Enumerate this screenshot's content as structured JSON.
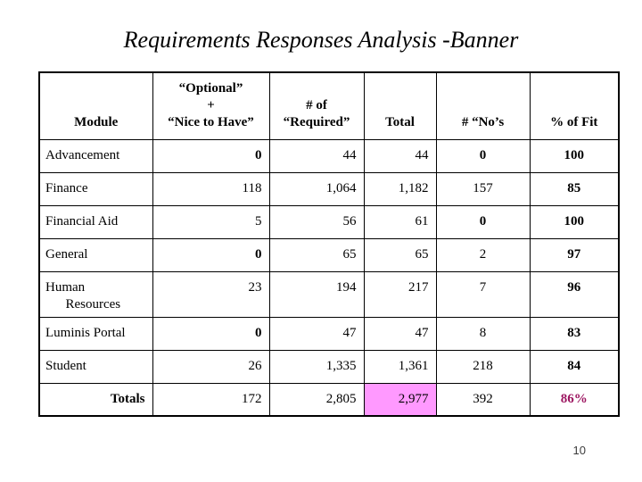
{
  "title": "Requirements Responses Analysis -Banner",
  "page_number": "10",
  "colors": {
    "highlight_cell_background": "#FF99FF",
    "accent_text": "#9C1560",
    "grid_lines": "#000000",
    "background": "#FFFFFF"
  },
  "table": {
    "headers": [
      "Module",
      "“Optional”\n+\n“Nice to Have”",
      "# of\n“Required”",
      "Total",
      "#  “No’s",
      "% of Fit"
    ],
    "rows": [
      {
        "name": "Advancement",
        "cells": [
          {
            "text": "0",
            "bold": true
          },
          {
            "text": "44"
          },
          {
            "text": "44"
          },
          {
            "text": "0",
            "bold": true
          },
          {
            "text": "100",
            "bold": true
          }
        ]
      },
      {
        "name": "Finance",
        "cells": [
          {
            "text": "118"
          },
          {
            "text": "1,064"
          },
          {
            "text": "1,182"
          },
          {
            "text": "157"
          },
          {
            "text": "85",
            "bold": true
          }
        ]
      },
      {
        "name": "Financial Aid",
        "cells": [
          {
            "text": "5"
          },
          {
            "text": "56"
          },
          {
            "text": "61"
          },
          {
            "text": "0",
            "bold": true
          },
          {
            "text": "100",
            "bold": true
          }
        ]
      },
      {
        "name": "General",
        "cells": [
          {
            "text": "0",
            "bold": true
          },
          {
            "text": "65"
          },
          {
            "text": "65"
          },
          {
            "text": "2"
          },
          {
            "text": "97",
            "bold": true
          }
        ]
      },
      {
        "name": "Human\n      Resources",
        "tall": true,
        "cells": [
          {
            "text": "23"
          },
          {
            "text": "194"
          },
          {
            "text": "217"
          },
          {
            "text": "7"
          },
          {
            "text": "96",
            "bold": true
          }
        ]
      },
      {
        "name": "Luminis Portal",
        "cells": [
          {
            "text": "0",
            "bold": true
          },
          {
            "text": "47"
          },
          {
            "text": "47"
          },
          {
            "text": "8"
          },
          {
            "text": "83",
            "bold": true
          }
        ]
      },
      {
        "name": "Student",
        "cells": [
          {
            "text": "26"
          },
          {
            "text": "1,335"
          },
          {
            "text": "1,361"
          },
          {
            "text": "218"
          },
          {
            "text": "84",
            "bold": true
          }
        ]
      },
      {
        "name": "Totals",
        "totals": true,
        "cells": [
          {
            "text": "172"
          },
          {
            "text": "2,805"
          },
          {
            "text": "2,977",
            "highlight": true
          },
          {
            "text": "392"
          },
          {
            "text": "86%",
            "bold": true,
            "accent": true
          }
        ]
      }
    ]
  }
}
